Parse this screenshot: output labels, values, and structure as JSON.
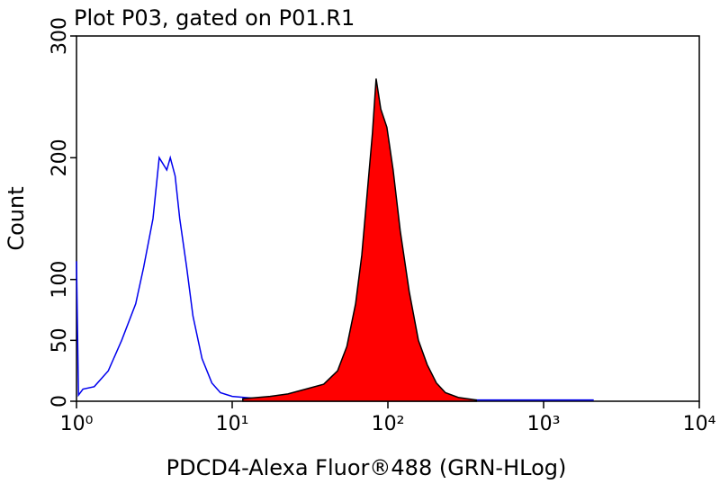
{
  "chart_data": {
    "type": "histogram-overlay",
    "title": "Plot P03, gated on P01.R1",
    "x_label": "PDCD4-Alexa Fluor®488 (GRN-HLog)",
    "y_label": "Count",
    "x_scale": "log",
    "xlim": [
      1,
      10000
    ],
    "xticks": [
      {
        "value": 1,
        "label": "10⁰"
      },
      {
        "value": 10,
        "label": "10¹"
      },
      {
        "value": 100,
        "label": "10²"
      },
      {
        "value": 1000,
        "label": "10³"
      },
      {
        "value": 10000,
        "label": "10⁴"
      }
    ],
    "ylim": [
      0,
      300
    ],
    "yticks": [
      0,
      50,
      100,
      200,
      300
    ],
    "series": [
      {
        "color": "#0000ee",
        "filled": false,
        "x": [
          1.0,
          1.03,
          1.1,
          1.3,
          1.6,
          1.95,
          2.4,
          2.7,
          3.1,
          3.4,
          3.8,
          4.0,
          4.3,
          4.6,
          5.1,
          5.6,
          6.4,
          7.4,
          8.4,
          10,
          15,
          26,
          66,
          250,
          950,
          2100
        ],
        "values": [
          115,
          5,
          10,
          12,
          25,
          50,
          80,
          110,
          150,
          200,
          190,
          200,
          185,
          150,
          110,
          70,
          35,
          15,
          7,
          4,
          2,
          1,
          1,
          1,
          1,
          1
        ]
      },
      {
        "color": "#ff0000",
        "filled": true,
        "x": [
          11.7,
          17.5,
          22.8,
          29.7,
          38.7,
          47.5,
          54.5,
          62,
          68,
          73.5,
          79.5,
          84,
          90,
          98.5,
          108,
          120,
          137,
          157,
          179,
          205,
          234,
          285,
          370
        ],
        "values": [
          2,
          4,
          6,
          10,
          14,
          25,
          45,
          80,
          120,
          170,
          220,
          265,
          240,
          225,
          190,
          140,
          90,
          50,
          30,
          15,
          7,
          3,
          1
        ]
      }
    ]
  }
}
